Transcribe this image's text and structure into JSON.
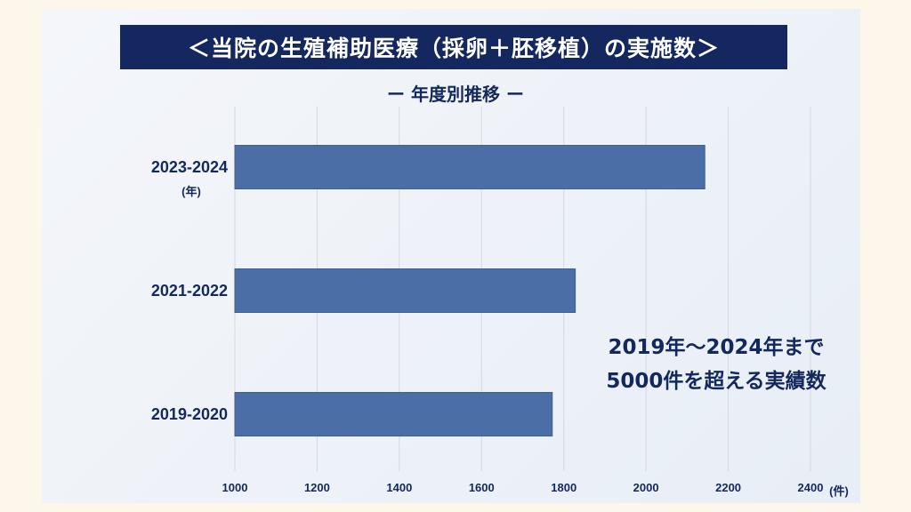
{
  "title": "＜当院の生殖補助医療（採卵＋胚移植）の実施数＞",
  "subtitle": "ー 年度別推移 ー",
  "annotation": [
    "2019年〜2024年まで",
    "5000件を超える実績数"
  ],
  "colors": {
    "bar": "#4a6ea5",
    "banner": "#14275e",
    "text": "#13285c"
  },
  "chart_data": {
    "type": "bar",
    "orientation": "horizontal",
    "categories": [
      "2023-2024",
      "2021-2022",
      "2019-2020"
    ],
    "category_unit": "(年)",
    "values": [
      2143,
      1828,
      1772
    ],
    "xlim": [
      1000,
      2400
    ],
    "xticks": [
      "1000",
      "1200",
      "1400",
      "1600",
      "1800",
      "2000",
      "2200",
      "2400"
    ],
    "xunit": "(件)",
    "grid": true
  }
}
